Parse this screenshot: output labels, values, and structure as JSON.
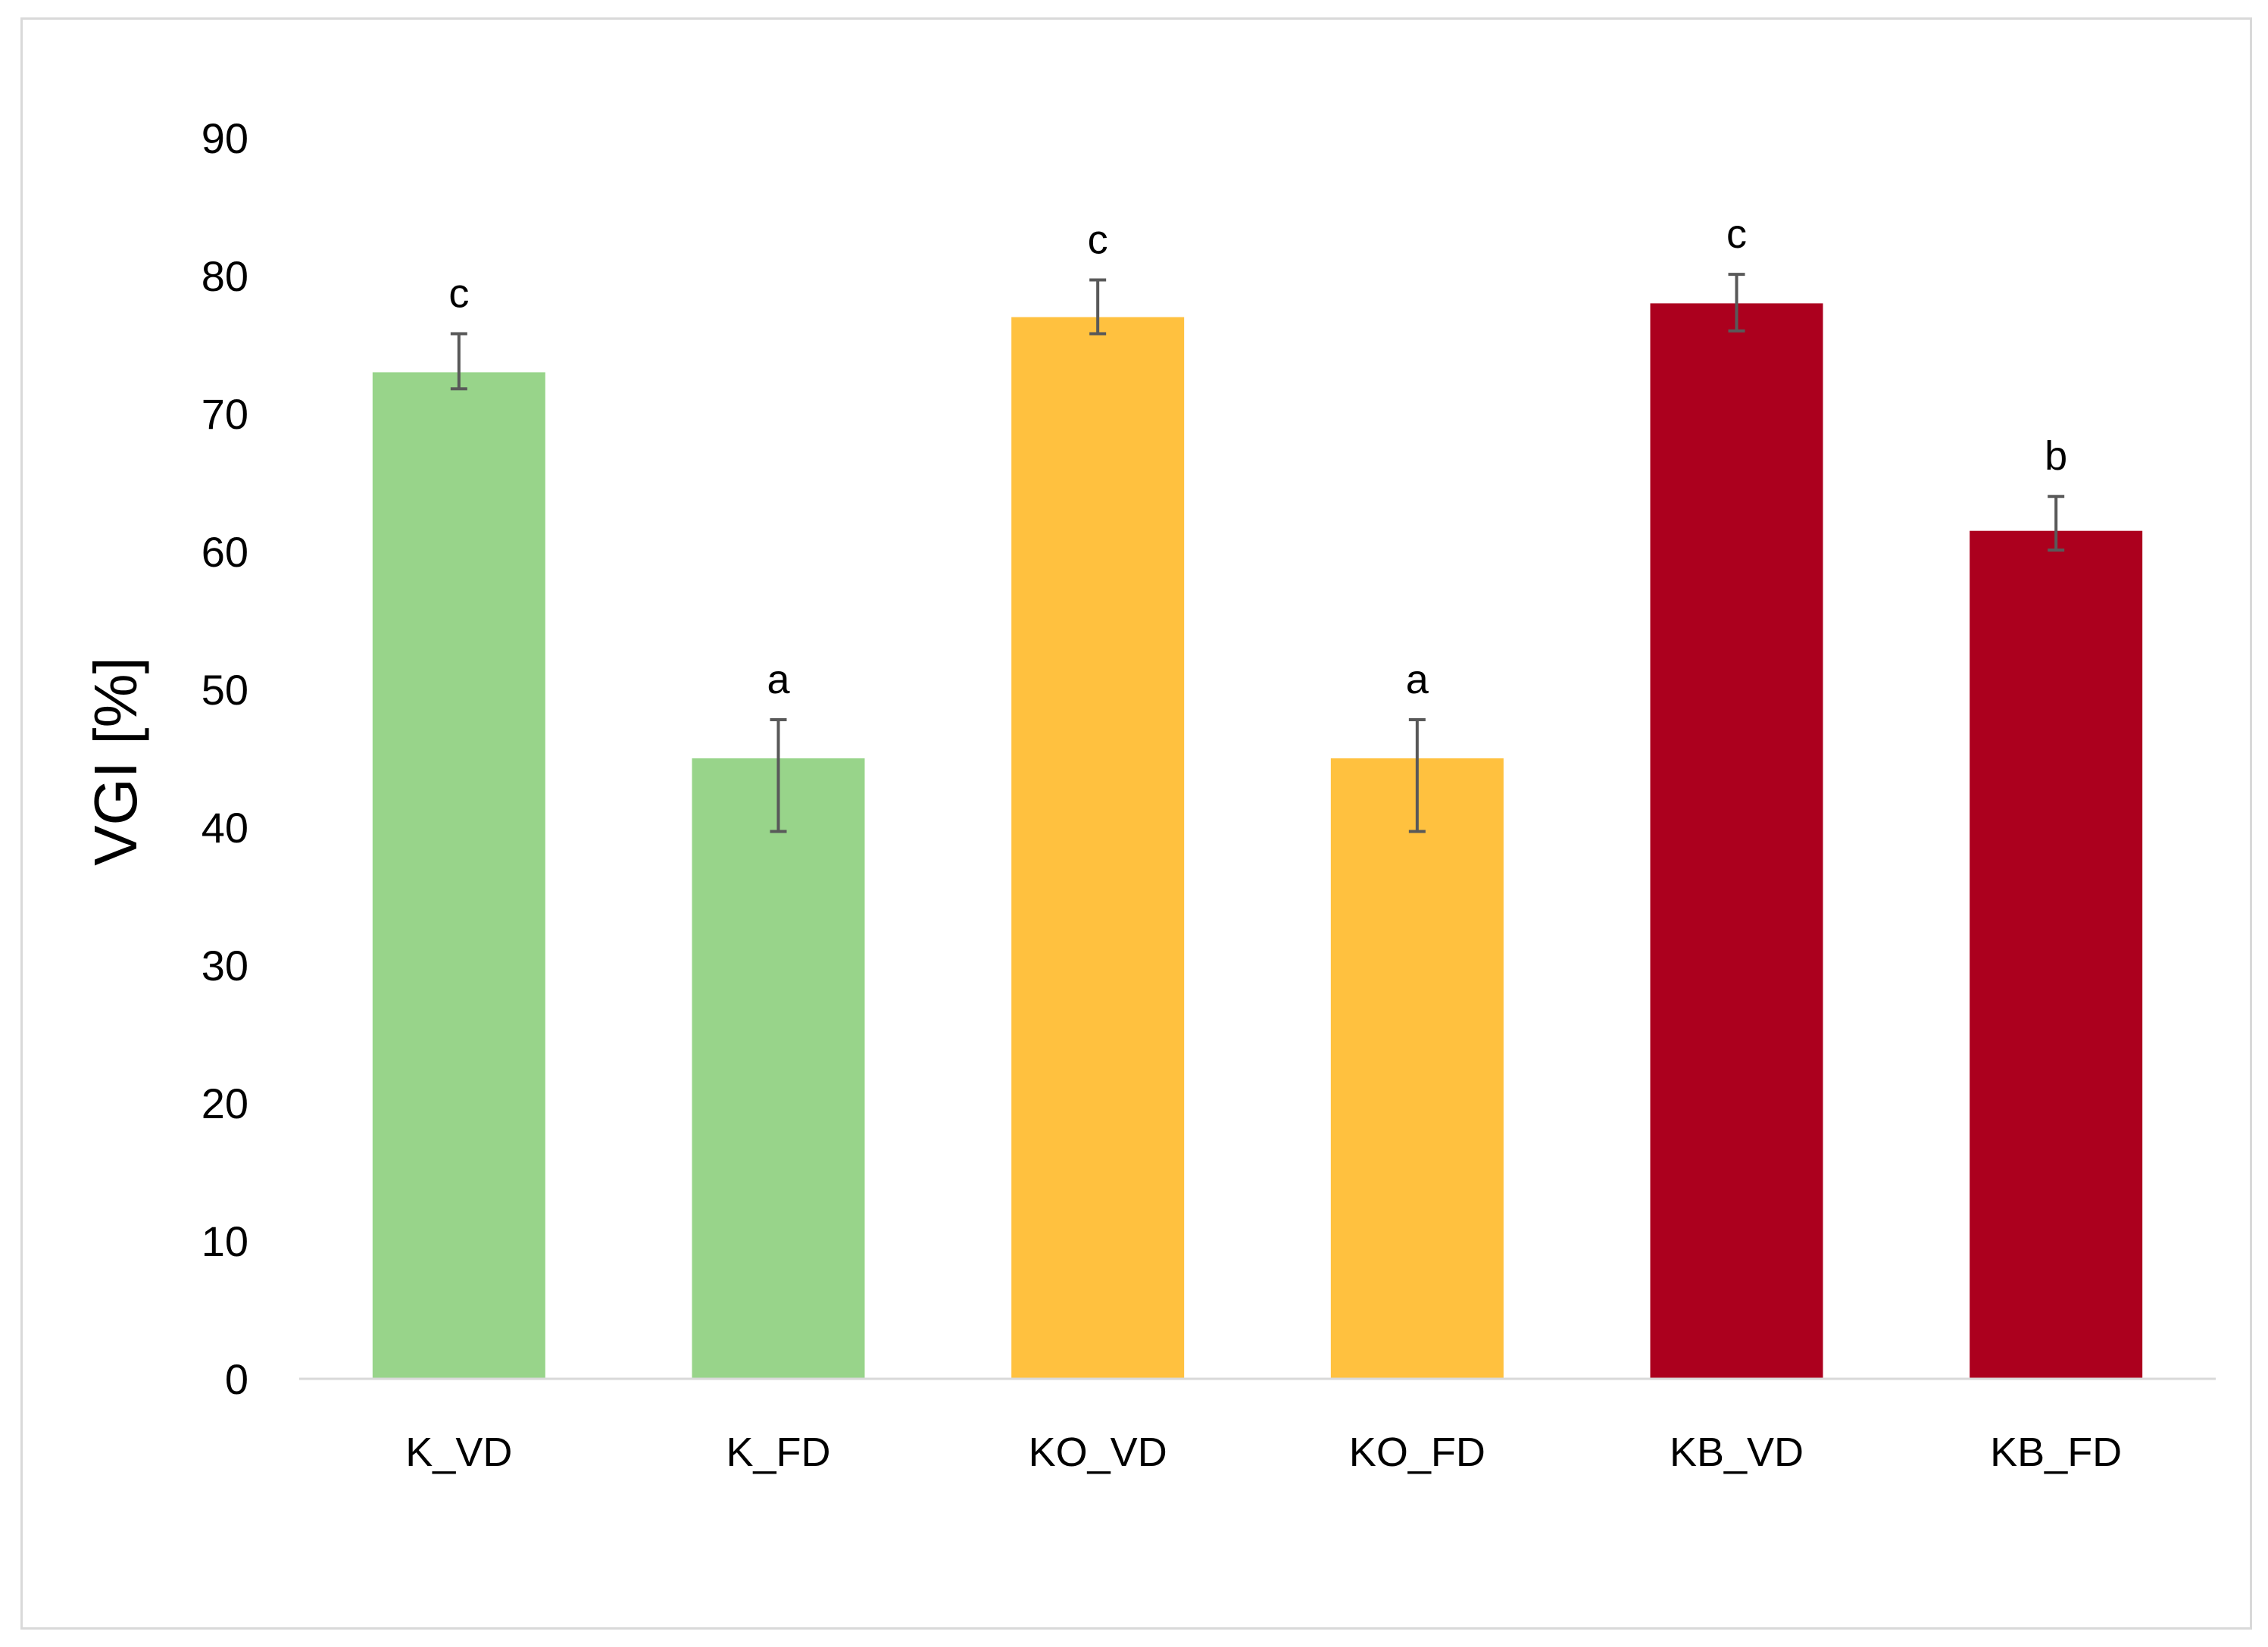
{
  "chart_data": {
    "type": "bar",
    "title": "",
    "xlabel": "",
    "ylabel": "VGI [%]",
    "ylim": [
      0,
      90
    ],
    "yticks": [
      0,
      10,
      20,
      30,
      40,
      50,
      60,
      70,
      80,
      90
    ],
    "grid": false,
    "legend": "none",
    "categories": [
      "K_VD",
      "K_FD",
      "KO_VD",
      "KO_FD",
      "KB_VD",
      "KB_FD"
    ],
    "values": [
      73,
      45,
      77,
      45,
      78,
      61.5
    ],
    "error_bars": [
      {
        "low": 71.8,
        "high": 75.8
      },
      {
        "low": 39.7,
        "high": 47.8
      },
      {
        "low": 75.8,
        "high": 79.7
      },
      {
        "low": 39.7,
        "high": 47.8
      },
      {
        "low": 76.0,
        "high": 80.1
      },
      {
        "low": 60.1,
        "high": 64.0
      }
    ],
    "significance_letters": [
      "c",
      "a",
      "c",
      "a",
      "c",
      "b"
    ],
    "colors": [
      "#98d48a",
      "#98d48a",
      "#ffc13f",
      "#ffc13f",
      "#ac001e",
      "#ac001e"
    ],
    "axis_color": "#d9d9d9",
    "error_bar_color": "#595959"
  }
}
